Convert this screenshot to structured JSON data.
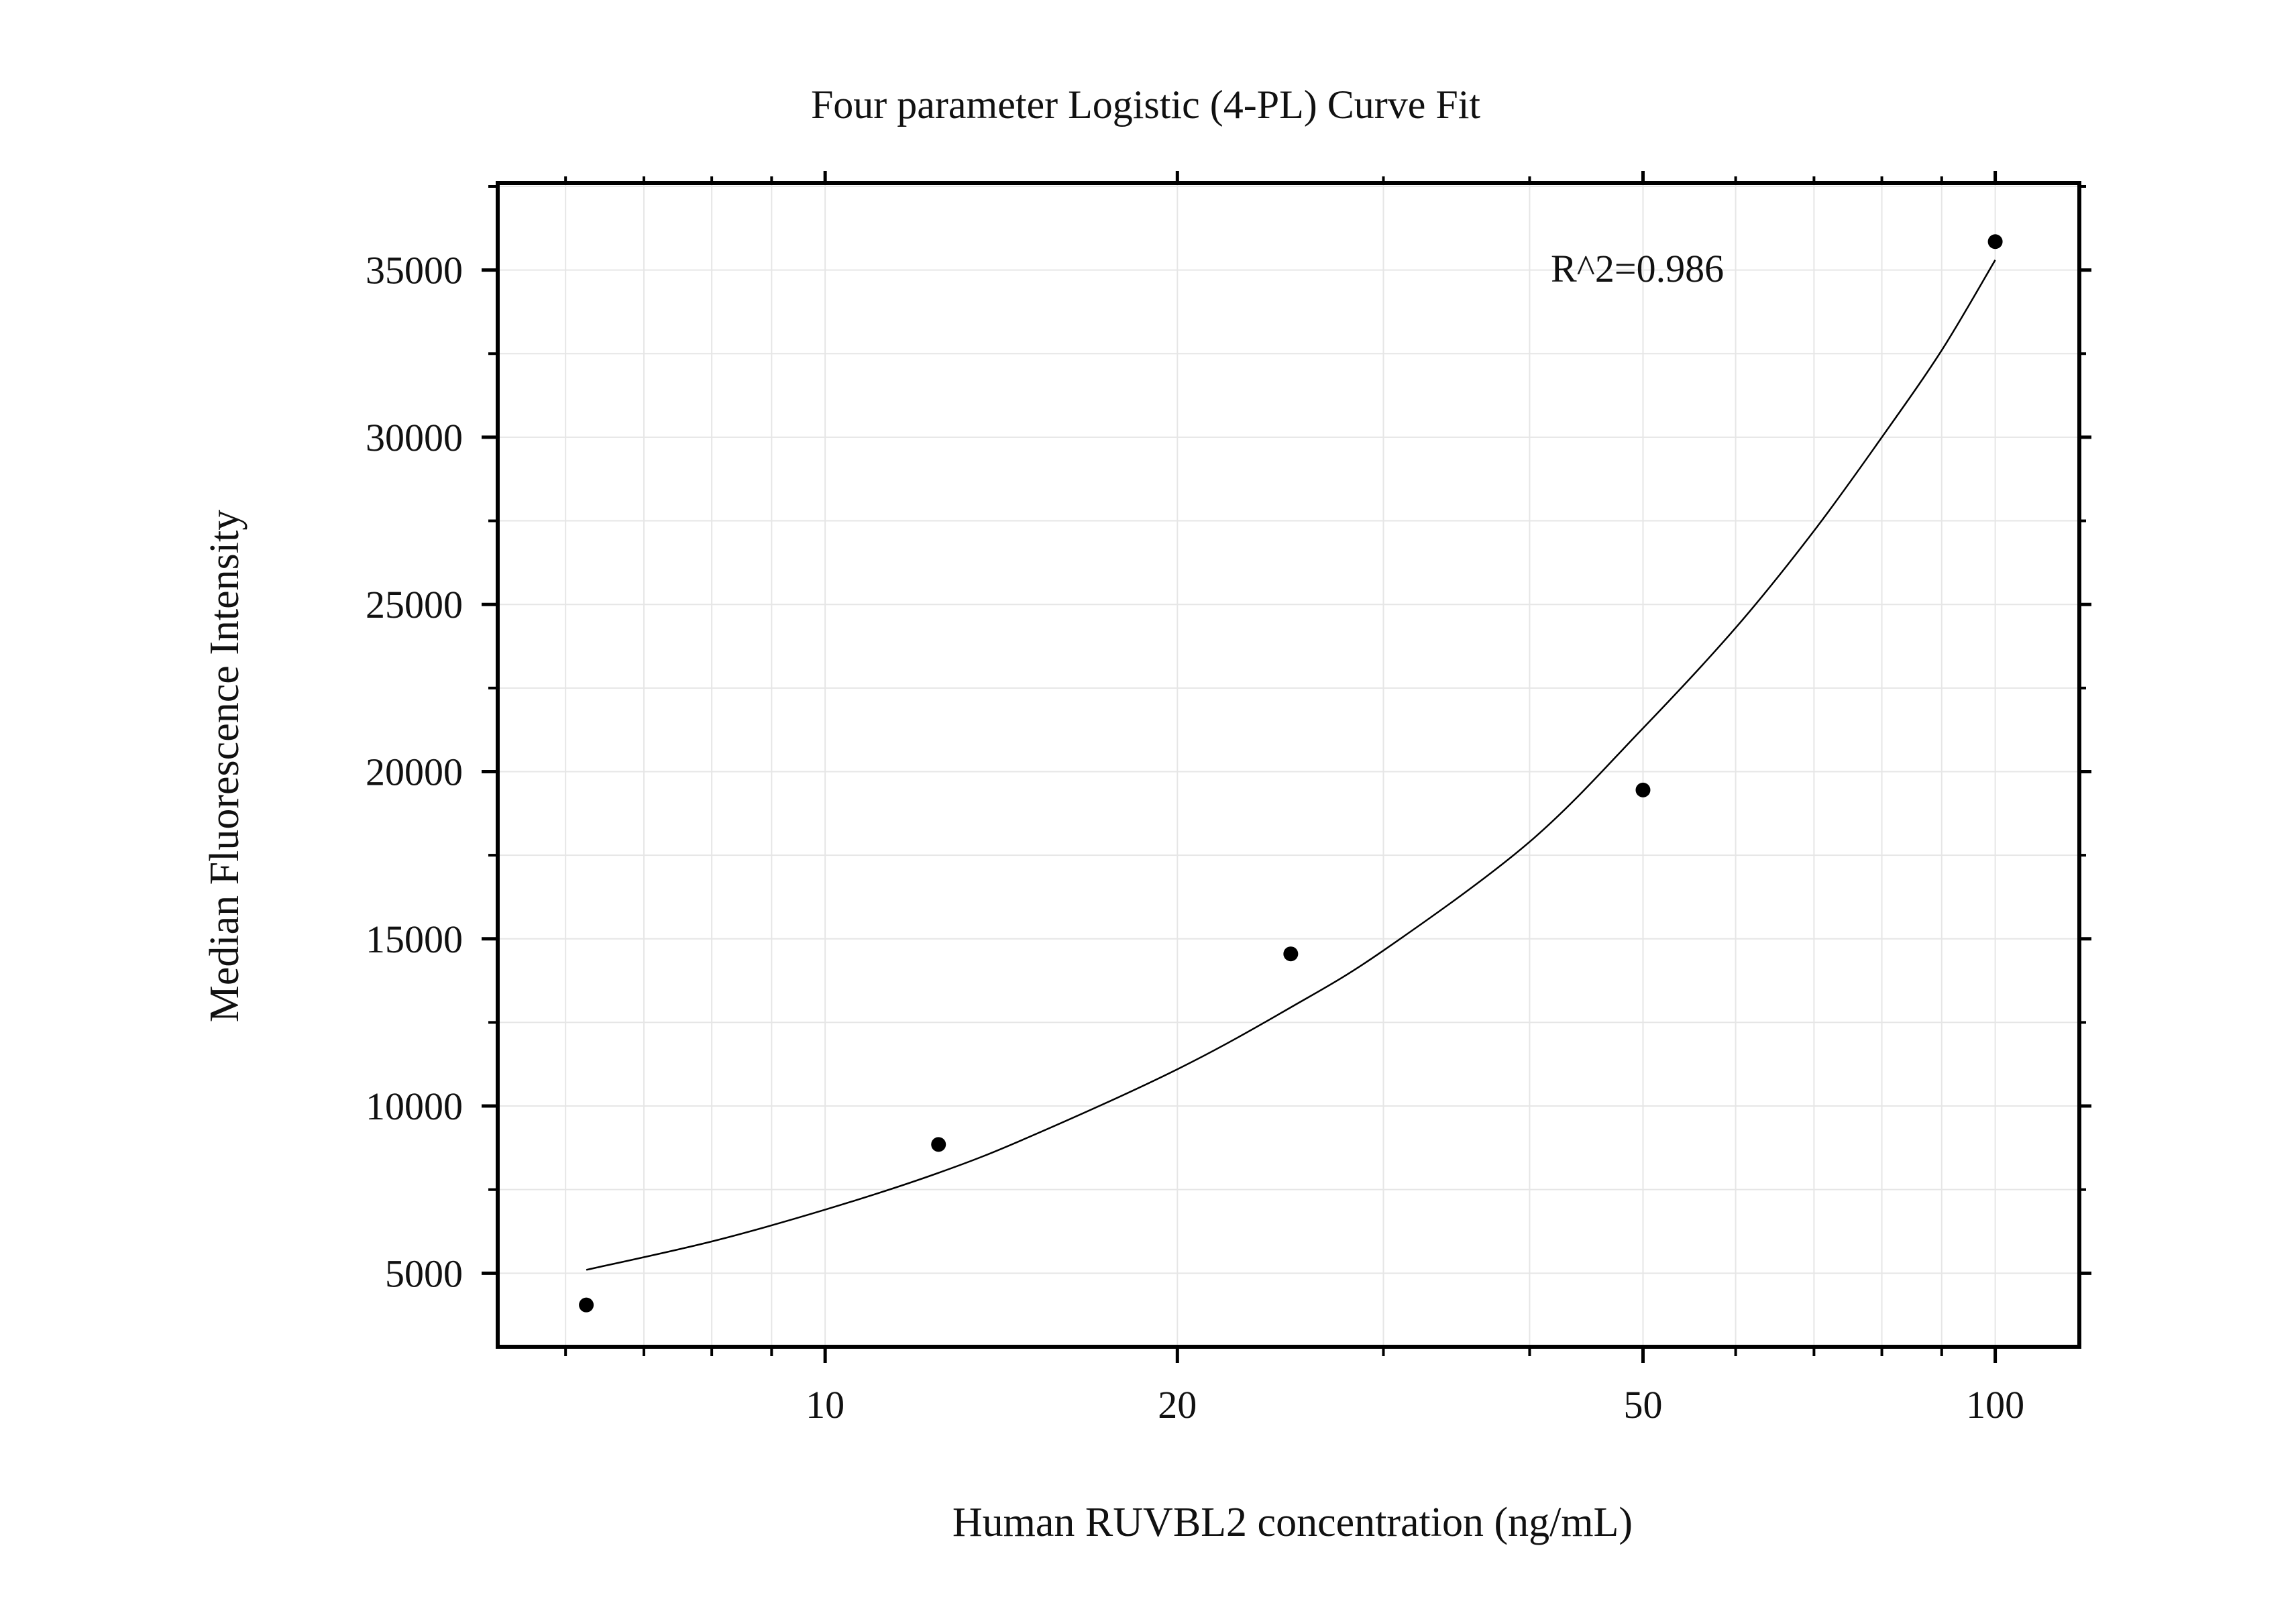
{
  "chart_data": {
    "type": "scatter",
    "title": "Four parameter Logistic (4-PL) Curve Fit",
    "xlabel": "Human RUVBL2 concentration (ng/mL)",
    "ylabel": "Median Fluorescence Intensity",
    "x_scale": "log",
    "xlim": [
      5.25,
      118
    ],
    "ylim": [
      2800,
      37600
    ],
    "x_ticks": [
      10,
      20,
      50,
      100
    ],
    "x_tick_labels": [
      "10",
      "20",
      "50",
      "100"
    ],
    "y_ticks": [
      5000,
      10000,
      15000,
      20000,
      25000,
      30000,
      35000
    ],
    "y_tick_labels": [
      "5000",
      "10000",
      "15000",
      "20000",
      "25000",
      "30000",
      "35000"
    ],
    "grid": true,
    "annotation": "R^2=0.986",
    "series": [
      {
        "kind": "points",
        "x": [
          6.25,
          12.5,
          25,
          50,
          100
        ],
        "y": [
          4050,
          8850,
          14550,
          19450,
          35850
        ]
      },
      {
        "kind": "fit-curve",
        "x": [
          6.25,
          8,
          10,
          12.5,
          15,
          20,
          25,
          30,
          40,
          50,
          60,
          70,
          80,
          90,
          100
        ],
        "y": [
          5100,
          5950,
          6900,
          8000,
          9100,
          11100,
          12950,
          14650,
          17900,
          21300,
          24300,
          27200,
          30000,
          32600,
          35300
        ]
      }
    ],
    "colors": {
      "points": "#000000",
      "curve": "#000000",
      "axes": "#000000",
      "grid": "#e6e6e6"
    }
  }
}
